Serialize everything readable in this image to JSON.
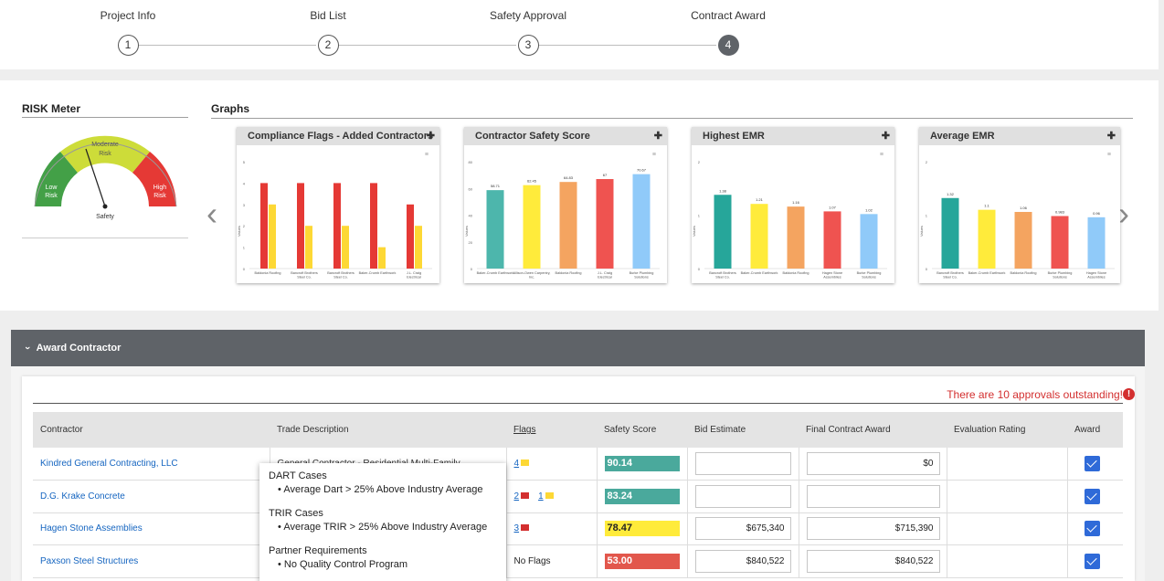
{
  "stepper": {
    "steps": [
      {
        "label": "Project Info",
        "number": "1"
      },
      {
        "label": "Bid List",
        "number": "2"
      },
      {
        "label": "Safety Approval",
        "number": "3"
      },
      {
        "label": "Contract Award",
        "number": "4"
      }
    ],
    "active_step": "4"
  },
  "risk_meter": {
    "title": "RISK Meter",
    "zones": [
      "Low Risk",
      "Moderate Risk",
      "High Risk"
    ],
    "caption": "Safety",
    "colors": {
      "low": "#43a047",
      "moderate": "#cddc39",
      "high": "#e53935"
    }
  },
  "graphs": {
    "title": "Graphs",
    "prev_icon": "chevron-left-icon",
    "next_icon": "chevron-right-icon",
    "expand_icon": "expand-arrows-icon"
  },
  "chart_data": [
    {
      "type": "bar",
      "title": "Compliance Flags - Added Contractors",
      "ylabel": "Values",
      "categories": [
        "Baldonia Roofing",
        "Bancroft Brothers Steel Co.",
        "Bancroft Brothers Steel Co.",
        "Baker-Crumb Earthwork",
        "J.L. Craig Electrical"
      ],
      "series": [
        {
          "values": [
            4,
            4,
            4,
            4,
            3
          ],
          "color": "#e53935"
        },
        {
          "values": [
            3,
            2,
            2,
            1,
            2
          ],
          "color": "#fdd835"
        }
      ],
      "ylim": [
        0,
        5
      ],
      "yticks": [
        "0",
        "1",
        "2",
        "3",
        "4",
        "5"
      ]
    },
    {
      "type": "bar",
      "title": "Contractor Safety Score",
      "ylabel": "Values",
      "categories": [
        "Baker-Crumb Earthwork",
        "Allison-Owen Carpentry, Inc.",
        "Baldonia Roofing",
        "J.L. Craig Electrical",
        "Burke Plumbing Solutions"
      ],
      "values": [
        58.71,
        62.45,
        64.83,
        67,
        70.67
      ],
      "colors": [
        "#4db6ac",
        "#ffeb3b",
        "#f4a460",
        "#ef5350",
        "#90caf9"
      ],
      "ylim": [
        0,
        80
      ],
      "yticks": [
        "0",
        "20",
        "40",
        "60",
        "80"
      ]
    },
    {
      "type": "bar",
      "title": "Highest EMR",
      "ylabel": "Values",
      "categories": [
        "Bancroft Brothers Steel Co.",
        "Baker-Crumb Earthwork",
        "Baldonia Roofing",
        "Hagen Stone Assemblies",
        "Burke Plumbing Solutions"
      ],
      "values": [
        1.38,
        1.21,
        1.16,
        1.07,
        1.02
      ],
      "colors": [
        "#26a69a",
        "#ffeb3b",
        "#f4a460",
        "#ef5350",
        "#90caf9"
      ],
      "ylim": [
        0,
        2
      ],
      "yticks": [
        "0",
        "1",
        "2"
      ]
    },
    {
      "type": "bar",
      "title": "Average EMR",
      "ylabel": "Values",
      "categories": [
        "Bancroft Brothers Steel Co.",
        "Baker-Crumb Earthwork",
        "Baldonia Roofing",
        "Burke Plumbing Solutions",
        "Hagen Stone Assemblies"
      ],
      "values": [
        1.32,
        1.1,
        1.06,
        0.983,
        0.96
      ],
      "colors": [
        "#26a69a",
        "#ffeb3b",
        "#f4a460",
        "#ef5350",
        "#90caf9"
      ],
      "ylim": [
        0,
        2
      ],
      "yticks": [
        "0",
        "1",
        "2"
      ]
    }
  ],
  "award": {
    "section_title": "Award Contractor",
    "outstanding_text": "There are 10 approvals outstanding!",
    "columns": [
      "Contractor",
      "Trade Description",
      "Flags",
      "Safety Score",
      "Bid Estimate",
      "Final Contract Award",
      "Evaluation Rating",
      "Award"
    ],
    "rows": [
      {
        "contractor": "Kindred General Contracting, LLC",
        "trade": "General Contractor - Residential Multi-Family",
        "red_flags": "",
        "yellow_flags": "4",
        "no_flags": "",
        "score": "90.14",
        "score_color": "#4aa99c",
        "bid": "",
        "final": "$0"
      },
      {
        "contractor": "D.G. Krake Concrete",
        "trade": "",
        "red_flags": "2",
        "yellow_flags": "1",
        "no_flags": "",
        "score": "83.24",
        "score_color": "#4aa99c",
        "bid": "",
        "final": ""
      },
      {
        "contractor": "Hagen Stone Assemblies",
        "trade": "",
        "red_flags": "3",
        "yellow_flags": "",
        "no_flags": "",
        "score": "78.47",
        "score_color": "#ffeb3b",
        "bid": "$675,340",
        "final": "$715,390"
      },
      {
        "contractor": "Paxson Steel Structures",
        "trade": "",
        "red_flags": "",
        "yellow_flags": "",
        "no_flags": "No Flags",
        "score": "53.00",
        "score_color": "#e2574c",
        "bid": "$840,522",
        "final": "$840,522"
      }
    ]
  },
  "tooltip": {
    "sections": [
      {
        "head": "DART Cases",
        "item": "Average Dart > 25% Above Industry Average"
      },
      {
        "head": "TRIR Cases",
        "item": "Average TRIR > 25% Above Industry Average"
      },
      {
        "head": "Partner Requirements",
        "item": "No Quality Control Program"
      }
    ]
  }
}
